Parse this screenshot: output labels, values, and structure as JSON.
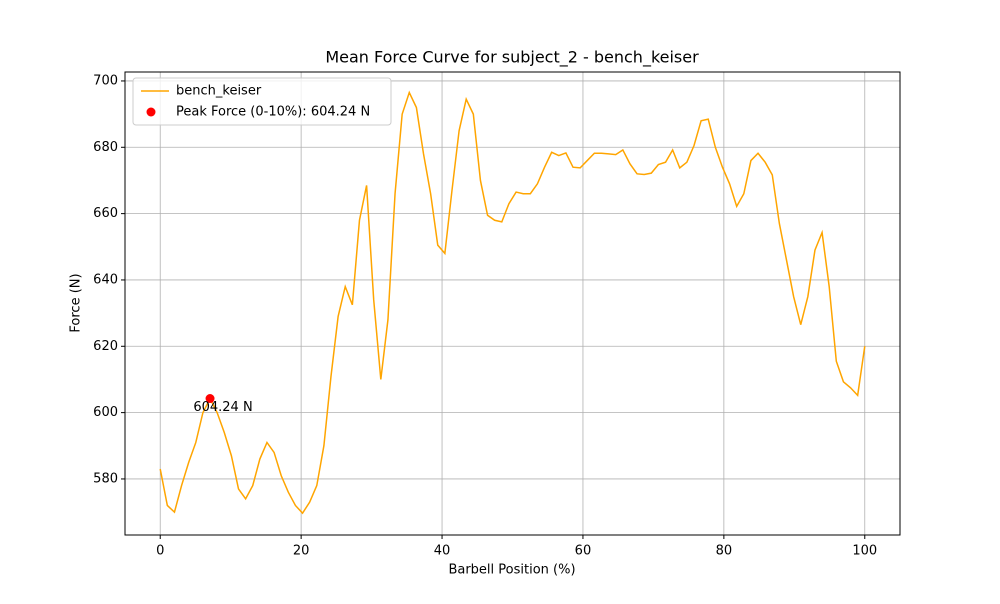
{
  "chart_data": {
    "type": "line",
    "title": "Mean Force Curve for subject_2 - bench_keiser",
    "xlabel": "Barbell Position (%)",
    "ylabel": "Force (N)",
    "x": [
      0,
      1.01,
      2.02,
      3.03,
      4.04,
      5.05,
      6.06,
      7.07,
      8.08,
      9.09,
      10.1,
      11.11,
      12.12,
      13.13,
      14.14,
      15.15,
      16.16,
      17.17,
      18.18,
      19.19,
      20.2,
      21.21,
      22.22,
      23.23,
      24.24,
      25.25,
      26.26,
      27.27,
      28.28,
      29.29,
      30.3,
      31.31,
      32.32,
      33.33,
      34.34,
      35.35,
      36.36,
      37.37,
      38.38,
      39.39,
      40.4,
      41.41,
      42.42,
      43.43,
      44.44,
      45.45,
      46.46,
      47.47,
      48.48,
      49.49,
      50.51,
      51.52,
      52.53,
      53.54,
      54.55,
      55.56,
      56.57,
      57.58,
      58.59,
      59.6,
      60.61,
      61.62,
      62.63,
      63.64,
      64.65,
      65.66,
      66.67,
      67.68,
      68.69,
      69.7,
      70.71,
      71.72,
      72.73,
      73.74,
      74.75,
      75.76,
      76.77,
      77.78,
      78.79,
      79.8,
      80.81,
      81.82,
      82.83,
      83.84,
      84.85,
      85.86,
      86.87,
      87.88,
      88.89,
      89.9,
      90.91,
      91.92,
      92.93,
      93.94,
      94.95,
      95.96,
      96.97,
      97.98,
      98.99,
      100
    ],
    "series": [
      {
        "name": "bench_keiser",
        "color": "#ffa500",
        "values": [
          583,
          572,
          570,
          578,
          585,
          591,
          600,
          604.24,
          600,
          594,
          587,
          577,
          574,
          578,
          586,
          591,
          588,
          581,
          576,
          572,
          569.7,
          573,
          578,
          590,
          611,
          629,
          638,
          632.5,
          658,
          668.5,
          634,
          610,
          628,
          666,
          690,
          696.5,
          692,
          678,
          666,
          650.5,
          648,
          667,
          685,
          694.5,
          690,
          670,
          659.5,
          658,
          657.5,
          663,
          666.5,
          666,
          666,
          669,
          674,
          678.5,
          677.5,
          678.3,
          674,
          673.8,
          676,
          678.2,
          678.2,
          678,
          677.8,
          679.2,
          675,
          672,
          671.8,
          672.2,
          674.8,
          675.5,
          679.2,
          673.8,
          675.5,
          680.5,
          688,
          688.5,
          680,
          674,
          669,
          662.2,
          666,
          676,
          678.2,
          675.5,
          671.7,
          657,
          646,
          635,
          626.5,
          635,
          649,
          654.3,
          638,
          615.5,
          609.3,
          607.5,
          605.2,
          620
        ]
      }
    ],
    "peak": {
      "name": "Peak Force (0-10%): 604.24 N",
      "color": "#ff0000",
      "x": 7.07,
      "value": 604.24,
      "value_label": "604.24 N"
    },
    "xlim": [
      -5,
      105
    ],
    "ylim": [
      563.1,
      702.7
    ],
    "xticks": [
      0,
      20,
      40,
      60,
      80,
      100
    ],
    "yticks": [
      580,
      600,
      620,
      640,
      660,
      680,
      700
    ],
    "grid": true,
    "legend": "upper left"
  }
}
